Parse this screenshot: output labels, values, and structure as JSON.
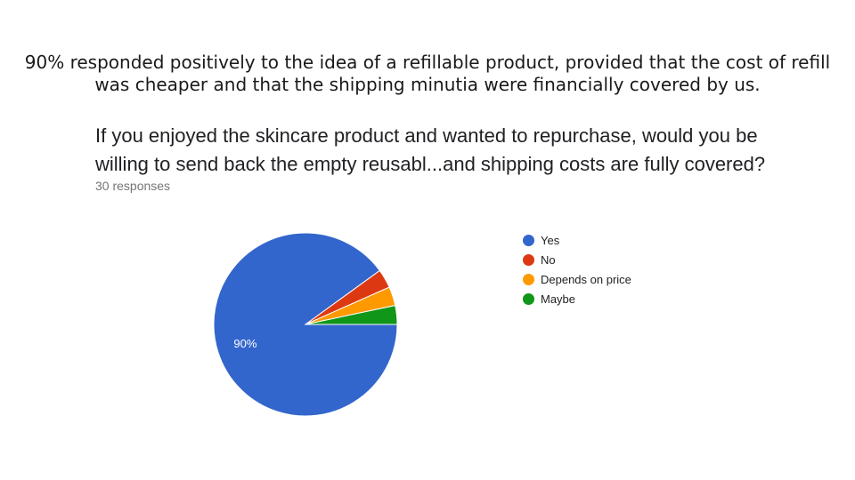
{
  "caption": "90% responded positively to the idea of a refillable product, provided that the cost of refill was cheaper and that the shipping minutia were financially covered by us.",
  "question": "If you enjoyed the skincare product and wanted to repurchase, would you be willing to send back the empty reusabl...and shipping costs are fully covered?",
  "response_count": "30 responses",
  "chart_data": {
    "type": "pie",
    "title": "",
    "categories": [
      "Yes",
      "No",
      "Depends on price",
      "Maybe"
    ],
    "values": [
      27,
      1,
      1,
      1
    ],
    "colors": [
      "#3366cc",
      "#dc3912",
      "#ff9900",
      "#109618"
    ],
    "slice_labels": [
      "90%",
      "",
      "",
      ""
    ],
    "legend_position": "right"
  }
}
